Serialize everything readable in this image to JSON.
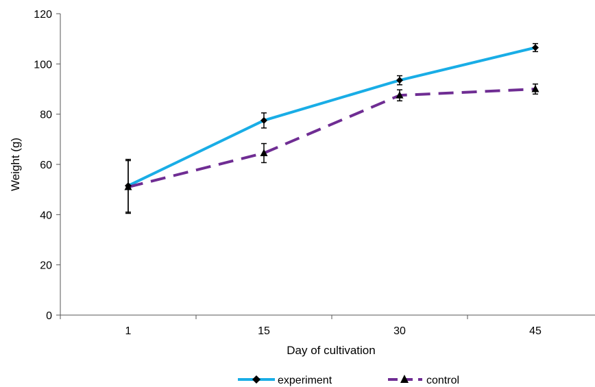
{
  "chart_data": {
    "type": "line",
    "title": "",
    "xlabel": "Day of cultivation",
    "ylabel": "Weight (g)",
    "categories": [
      "1",
      "15",
      "30",
      "45"
    ],
    "ylim": [
      0,
      120
    ],
    "yticks": [
      0,
      20,
      40,
      60,
      80,
      100,
      120
    ],
    "grid": false,
    "legend_position": "bottom",
    "series": [
      {
        "name": "experiment",
        "values": [
          51.5,
          77.5,
          93.5,
          106.5
        ],
        "errors": [
          10.5,
          3.0,
          1.8,
          1.6
        ],
        "color": "#19ade6",
        "line_style": "solid",
        "marker": "diamond"
      },
      {
        "name": "control",
        "values": [
          51.0,
          64.5,
          87.5,
          90.0
        ],
        "errors": [
          10.5,
          3.8,
          2.2,
          2.0
        ],
        "color": "#6f2d93",
        "line_style": "dashed",
        "marker": "triangle"
      }
    ]
  }
}
